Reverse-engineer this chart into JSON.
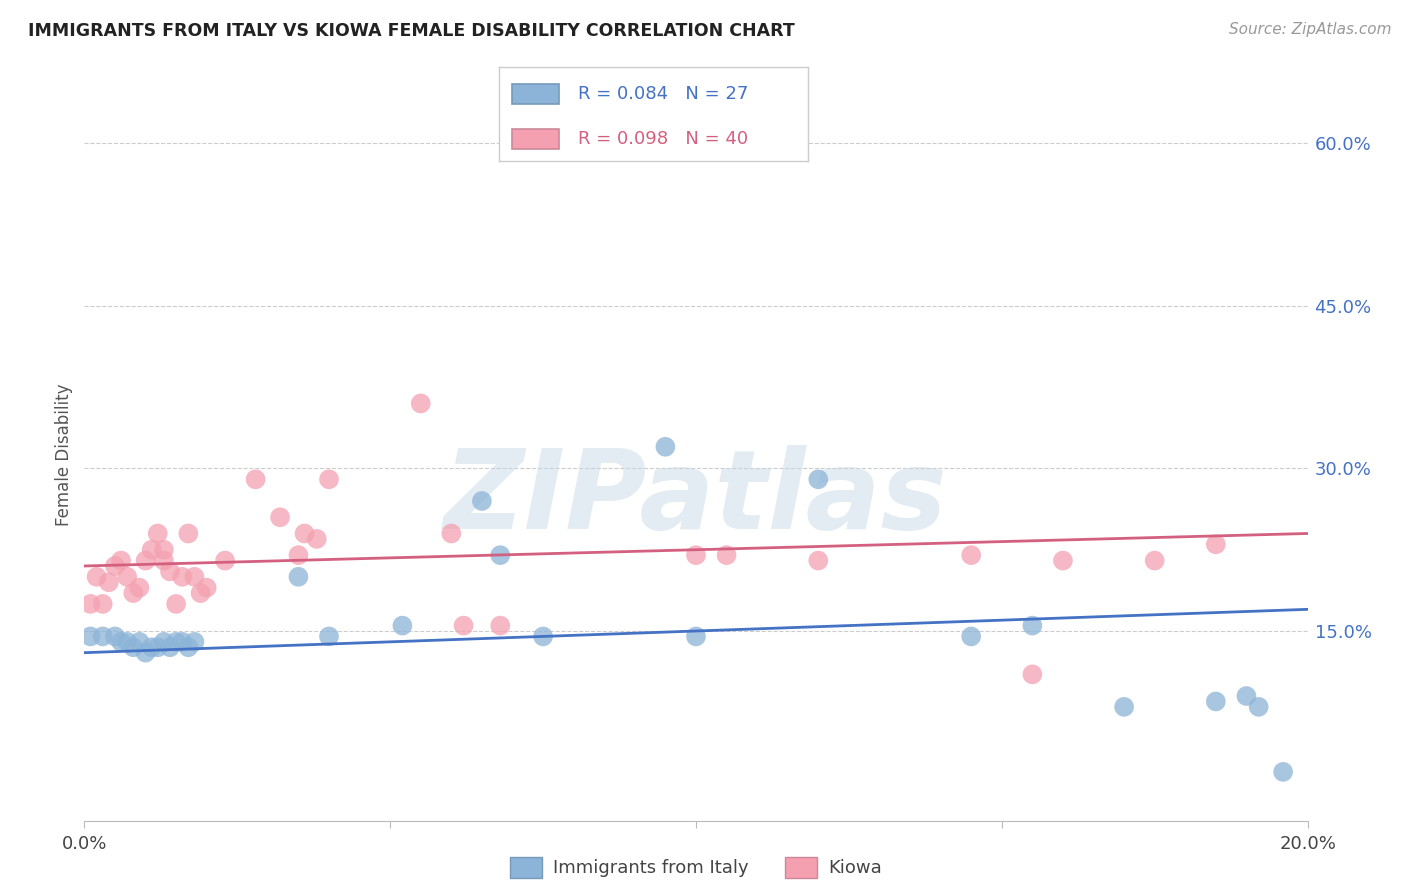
{
  "title": "IMMIGRANTS FROM ITALY VS KIOWA FEMALE DISABILITY CORRELATION CHART",
  "source": "Source: ZipAtlas.com",
  "ylabel": "Female Disability",
  "yticks": [
    0.0,
    0.15,
    0.3,
    0.45,
    0.6
  ],
  "ytick_labels": [
    "",
    "15.0%",
    "30.0%",
    "45.0%",
    "60.0%"
  ],
  "xlim": [
    0.0,
    0.2
  ],
  "ylim": [
    -0.025,
    0.65
  ],
  "watermark": "ZIPatlas",
  "legend_label1": "Immigrants from Italy",
  "legend_label2": "Kiowa",
  "blue_color": "#8CB4D8",
  "pink_color": "#F4A0B0",
  "blue_line_color": "#4472C4",
  "pink_line_color": "#D46080",
  "blue_axis_color": "#4472C4",
  "italy_x": [
    0.001,
    0.003,
    0.005,
    0.006,
    0.007,
    0.008,
    0.009,
    0.01,
    0.011,
    0.012,
    0.013,
    0.014,
    0.015,
    0.016,
    0.017,
    0.018,
    0.035,
    0.04,
    0.052,
    0.065,
    0.068,
    0.075,
    0.095,
    0.1,
    0.12,
    0.145,
    0.155,
    0.17,
    0.185,
    0.19,
    0.192,
    0.196
  ],
  "italy_y": [
    0.145,
    0.145,
    0.145,
    0.14,
    0.14,
    0.135,
    0.14,
    0.13,
    0.135,
    0.135,
    0.14,
    0.135,
    0.14,
    0.14,
    0.135,
    0.14,
    0.2,
    0.145,
    0.155,
    0.27,
    0.22,
    0.145,
    0.32,
    0.145,
    0.29,
    0.145,
    0.155,
    0.08,
    0.085,
    0.09,
    0.08,
    0.02
  ],
  "kiowa_x": [
    0.001,
    0.002,
    0.003,
    0.004,
    0.005,
    0.006,
    0.007,
    0.008,
    0.009,
    0.01,
    0.011,
    0.012,
    0.013,
    0.013,
    0.014,
    0.015,
    0.016,
    0.017,
    0.018,
    0.019,
    0.02,
    0.023,
    0.028,
    0.032,
    0.035,
    0.036,
    0.038,
    0.04,
    0.055,
    0.06,
    0.062,
    0.068,
    0.1,
    0.105,
    0.12,
    0.145,
    0.155,
    0.16,
    0.175,
    0.185
  ],
  "kiowa_y": [
    0.175,
    0.2,
    0.175,
    0.195,
    0.21,
    0.215,
    0.2,
    0.185,
    0.19,
    0.215,
    0.225,
    0.24,
    0.215,
    0.225,
    0.205,
    0.175,
    0.2,
    0.24,
    0.2,
    0.185,
    0.19,
    0.215,
    0.29,
    0.255,
    0.22,
    0.24,
    0.235,
    0.29,
    0.36,
    0.24,
    0.155,
    0.155,
    0.22,
    0.22,
    0.215,
    0.22,
    0.11,
    0.215,
    0.215,
    0.23
  ],
  "italy_line_x": [
    0.0,
    0.2
  ],
  "italy_line_y": [
    0.13,
    0.17
  ],
  "kiowa_line_x": [
    0.0,
    0.2
  ],
  "kiowa_line_y": [
    0.21,
    0.24
  ],
  "background_color": "#FFFFFF",
  "grid_color": "#CCCCCC"
}
